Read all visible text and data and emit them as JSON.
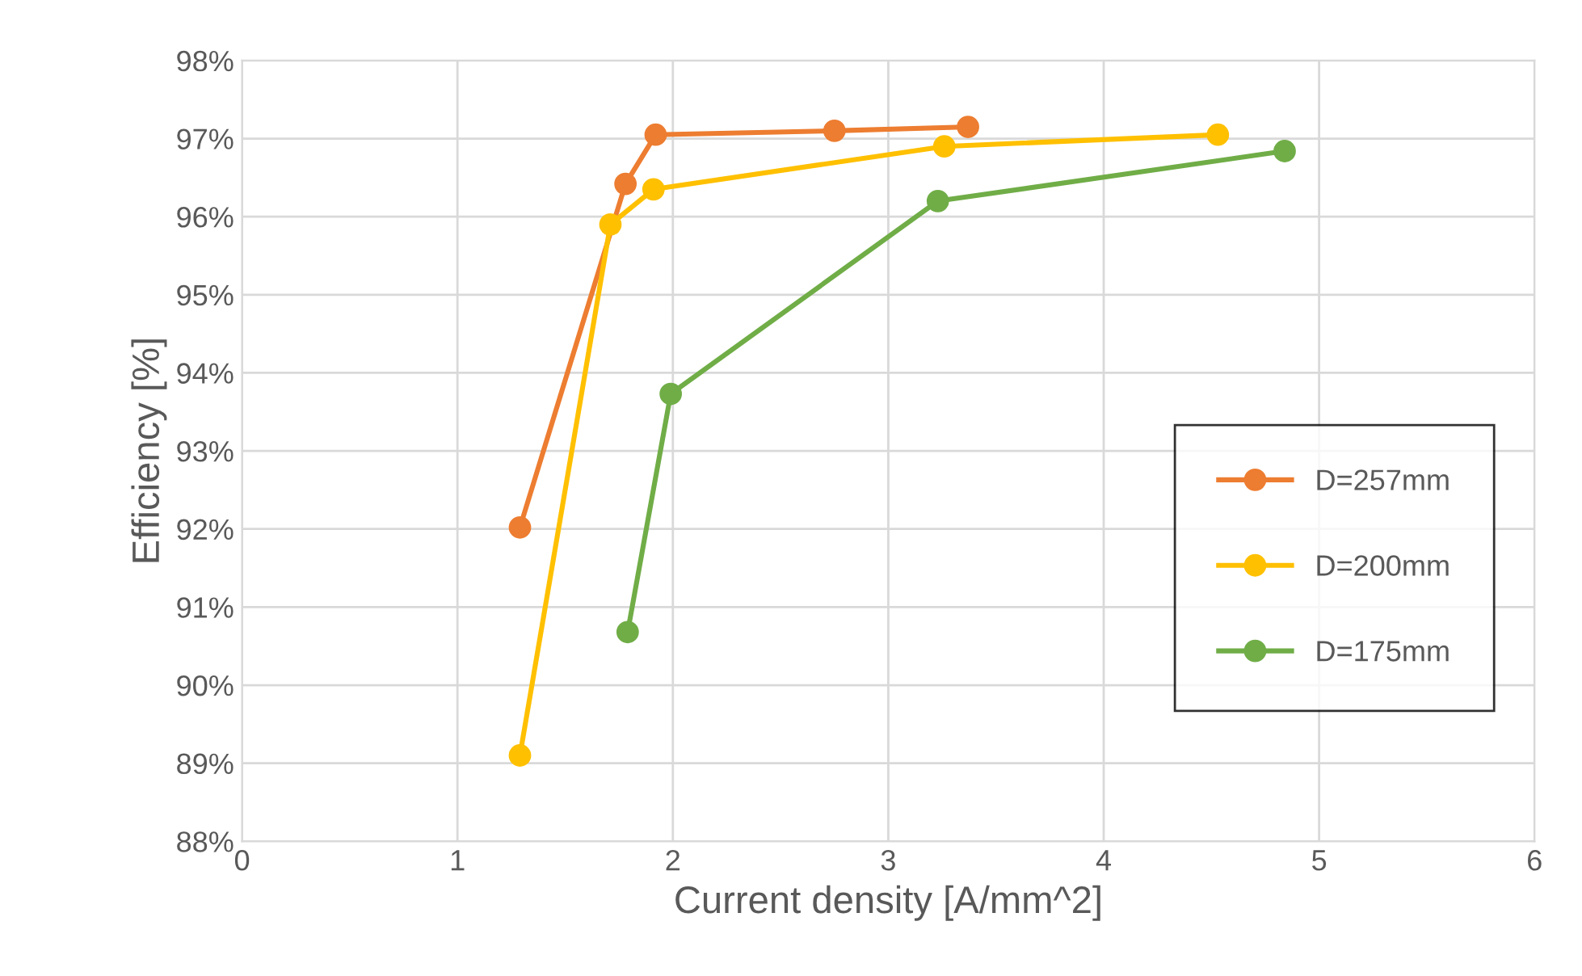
{
  "chart_data": {
    "type": "line",
    "xlabel": "Current density [A/mm^2]",
    "ylabel": "Efficiency [%]",
    "series": [
      {
        "name": "D=257mm",
        "color": "#ed7d31",
        "x": [
          1.29,
          1.78,
          1.92,
          2.75,
          3.37
        ],
        "values": [
          92.02,
          96.42,
          97.05,
          97.1,
          97.15
        ]
      },
      {
        "name": "D=200mm",
        "color": "#ffc000",
        "x": [
          1.29,
          1.71,
          1.91,
          3.26,
          4.53
        ],
        "values": [
          89.1,
          95.9,
          96.35,
          96.9,
          97.05
        ]
      },
      {
        "name": "D=175mm",
        "color": "#70ad47",
        "x": [
          1.79,
          1.99,
          3.23,
          4.84
        ],
        "values": [
          90.68,
          93.73,
          96.2,
          96.84
        ]
      }
    ],
    "xlim": [
      0,
      6
    ],
    "xticks": [
      0,
      1,
      2,
      3,
      4,
      5,
      6
    ],
    "ylim": [
      88,
      98
    ],
    "yticks": [
      {
        "value": 88,
        "label": "88%"
      },
      {
        "value": 89,
        "label": "89%"
      },
      {
        "value": 90,
        "label": "90%"
      },
      {
        "value": 91,
        "label": "91%"
      },
      {
        "value": 92,
        "label": "92%"
      },
      {
        "value": 93,
        "label": "93%"
      },
      {
        "value": 94,
        "label": "94%"
      },
      {
        "value": 95,
        "label": "95%"
      },
      {
        "value": 96,
        "label": "96%"
      },
      {
        "value": 97,
        "label": "97%"
      },
      {
        "value": 98,
        "label": "98%"
      }
    ],
    "grid": true,
    "legend": "right",
    "marker": "circle",
    "line_style": "solid"
  }
}
